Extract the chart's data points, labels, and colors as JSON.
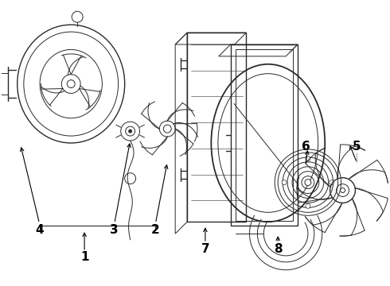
{
  "bg_color": "#ffffff",
  "line_color": "#2a2a2a",
  "label_color": "#000000",
  "label_fontsize": 11,
  "figsize": [
    4.9,
    3.6
  ],
  "dpi": 100
}
